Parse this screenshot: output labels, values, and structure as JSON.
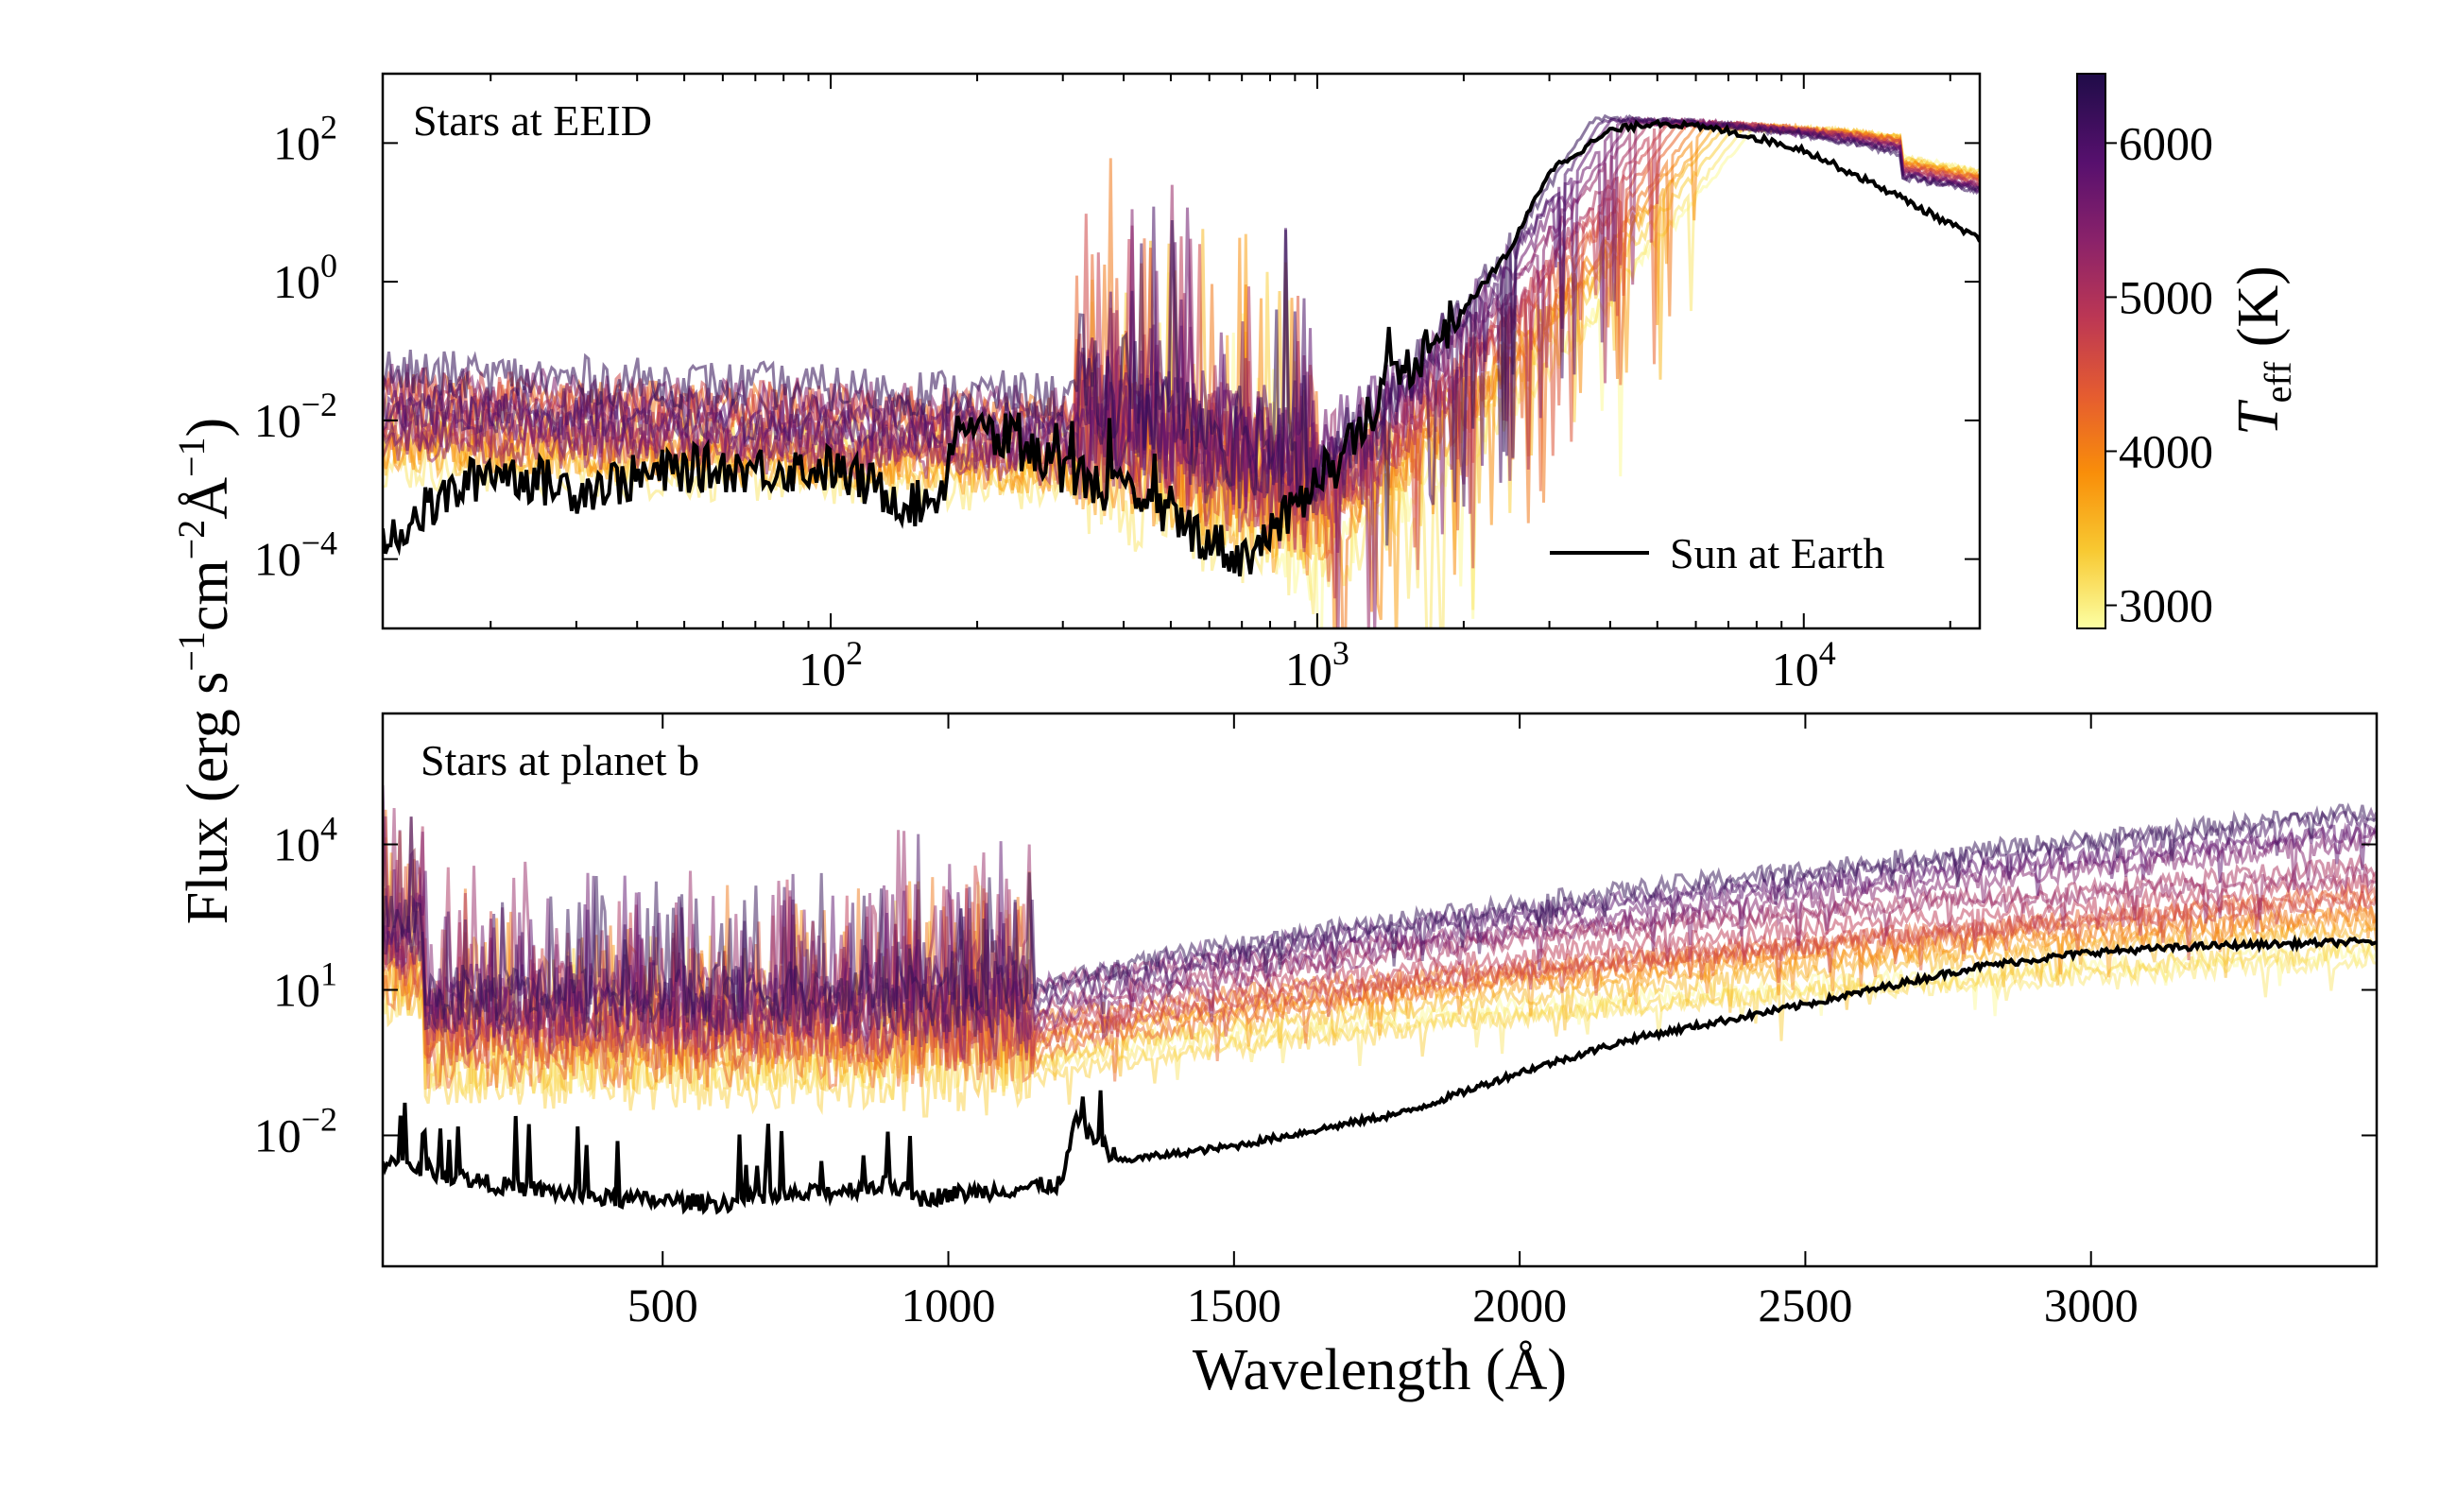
{
  "chart_data": [
    {
      "type": "line",
      "panel": "top",
      "annotation": "Stars at EEID",
      "xscale": "log",
      "yscale": "log",
      "xlim": [
        12,
        23000
      ],
      "ylim": [
        1e-05,
        1000
      ],
      "xticks": [
        {
          "value": 100,
          "base": "10",
          "exp": "2"
        },
        {
          "value": 1000,
          "base": "10",
          "exp": "3"
        },
        {
          "value": 10000,
          "base": "10",
          "exp": "4"
        }
      ],
      "yticks": [
        {
          "value": 100,
          "base": "10",
          "exp": "2"
        },
        {
          "value": 1,
          "base": "10",
          "exp": "0"
        },
        {
          "value": 0.01,
          "base": "10",
          "exp": "−2"
        },
        {
          "value": 0.0001,
          "base": "10",
          "exp": "−4"
        }
      ],
      "legend": {
        "position": "lower-right",
        "entries": [
          "Sun at Earth"
        ]
      },
      "series": [
        {
          "name": "Sun at Earth",
          "color": "#000000",
          "x": [
            12,
            20,
            30,
            50,
            100,
            150,
            170,
            180,
            300,
            500,
            700,
            900,
            1000,
            1100,
            1200,
            1500,
            2000,
            2500,
            3000,
            4000,
            5000,
            7000,
            10000,
            15000,
            23000
          ],
          "y": [
            0.0002,
            0.002,
            0.001,
            0.002,
            0.002,
            0.0006,
            0.001,
            0.01,
            0.002,
            0.0004,
            0.0001,
            0.0005,
            0.002,
            0.002,
            0.008,
            0.05,
            0.4,
            3,
            40,
            150,
            200,
            150,
            80,
            20,
            4
          ]
        }
      ]
    },
    {
      "type": "line",
      "panel": "bottom",
      "annotation": "Stars at planet b",
      "xscale": "linear",
      "yscale": "log",
      "xlim": [
        10,
        3500
      ],
      "ylim": [
        2e-05,
        5000000
      ],
      "xticks": [
        500,
        1000,
        1500,
        2000,
        2500,
        3000
      ],
      "yticks": [
        {
          "value": 10000,
          "base": "10",
          "exp": "4"
        },
        {
          "value": 10,
          "base": "10",
          "exp": "1"
        },
        {
          "value": 0.01,
          "base": "10",
          "exp": "−2"
        }
      ],
      "series": [
        {
          "name": "Sun at Earth",
          "color": "#000000",
          "x": [
            10,
            200,
            400,
            600,
            800,
            900,
            950,
            1000,
            1200,
            1220,
            1300,
            1500,
            1800,
            2000,
            2200,
            2500,
            2800,
            3000,
            3200,
            3500
          ],
          "y": [
            0.003,
            0.001,
            0.0005,
            0.0004,
            0.0007,
            0.001,
            0.0005,
            0.0006,
            0.001,
            0.02,
            0.003,
            0.006,
            0.03,
            0.2,
            1,
            5,
            30,
            60,
            80,
            100
          ]
        }
      ]
    }
  ],
  "ylabel": "Flux (erg s⁻¹cm⁻²Å⁻¹)",
  "xlabel": "Wavelength (Å)",
  "colorbar": {
    "label": "T_eff (K)",
    "range": [
      2850,
      6450
    ],
    "ticks": [
      "3000",
      "4000",
      "5000",
      "6000"
    ],
    "colormap": [
      "#fcffa4",
      "#f8c932",
      "#f98e09",
      "#e55c30",
      "#bc3754",
      "#8a226a",
      "#57106e",
      "#1f0c48"
    ]
  },
  "star_temperatures_K": [
    2900,
    3100,
    3300,
    3500,
    3700,
    3900,
    4100,
    4300,
    4500,
    4700,
    4900,
    5100,
    5300,
    5500,
    5700,
    5900,
    6100,
    6300
  ]
}
